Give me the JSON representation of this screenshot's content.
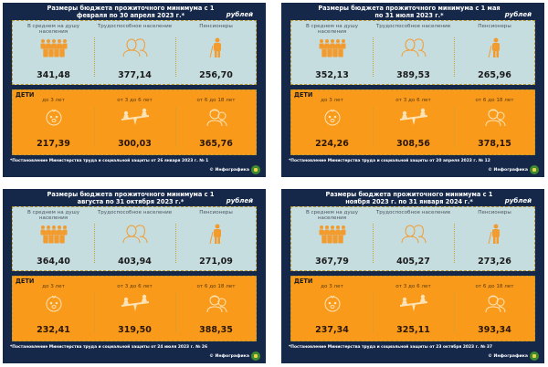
{
  "colors": {
    "background": "#15284a",
    "adults_box": "#c6dde0",
    "children_box": "#f99a1b",
    "icon": "#f29b2e"
  },
  "common": {
    "unit": "рублей",
    "adult_labels": [
      "В среднем на душу населения",
      "Трудоспособное население",
      "Пенсионеры"
    ],
    "children_heading": "ДЕТИ",
    "children_labels": [
      "до 3 лет",
      "от 3 до 6 лет",
      "от 6 до 18 лет"
    ],
    "brand": "© Инфографика",
    "icons": [
      "people-group-icon",
      "couple-icon",
      "elderly-person-icon",
      "baby-icon",
      "seesaw-icon",
      "teenagers-icon"
    ]
  },
  "panels": [
    {
      "title": "Размеры бюджета прожиточного минимума с 1 февраля по 30 апреля 2023 г.*",
      "adults": [
        "341,48",
        "377,14",
        "256,70"
      ],
      "children": [
        "217,39",
        "300,03",
        "365,76"
      ],
      "note": "*Постановление Министерства труда и социальной защиты от 26 января 2023 г. № 1"
    },
    {
      "title": "Размеры бюджета прожиточного минимума с 1 мая по 31 июля 2023 г.*",
      "adults": [
        "352,13",
        "389,53",
        "265,96"
      ],
      "children": [
        "224,26",
        "308,56",
        "378,15"
      ],
      "note": "*Постановление Министерства труда и социальной защиты от 20 апреля 2023 г. № 12"
    },
    {
      "title": "Размеры бюджета прожиточного минимума с 1 августа по 31 октября 2023 г.*",
      "adults": [
        "364,40",
        "403,94",
        "271,09"
      ],
      "children": [
        "232,41",
        "319,50",
        "388,35"
      ],
      "note": "*Постановление Министерства труда и социальной защиты от 24 июля 2023 г. № 26"
    },
    {
      "title": "Размеры бюджета прожиточного минимума с 1 ноября 2023 г. по 31 января 2024 г.*",
      "adults": [
        "367,79",
        "405,27",
        "273,26"
      ],
      "children": [
        "237,34",
        "325,11",
        "393,34"
      ],
      "note": "*Постановление Министерства труда и социальной защиты от 23 октября 2023 г. № 37"
    }
  ]
}
